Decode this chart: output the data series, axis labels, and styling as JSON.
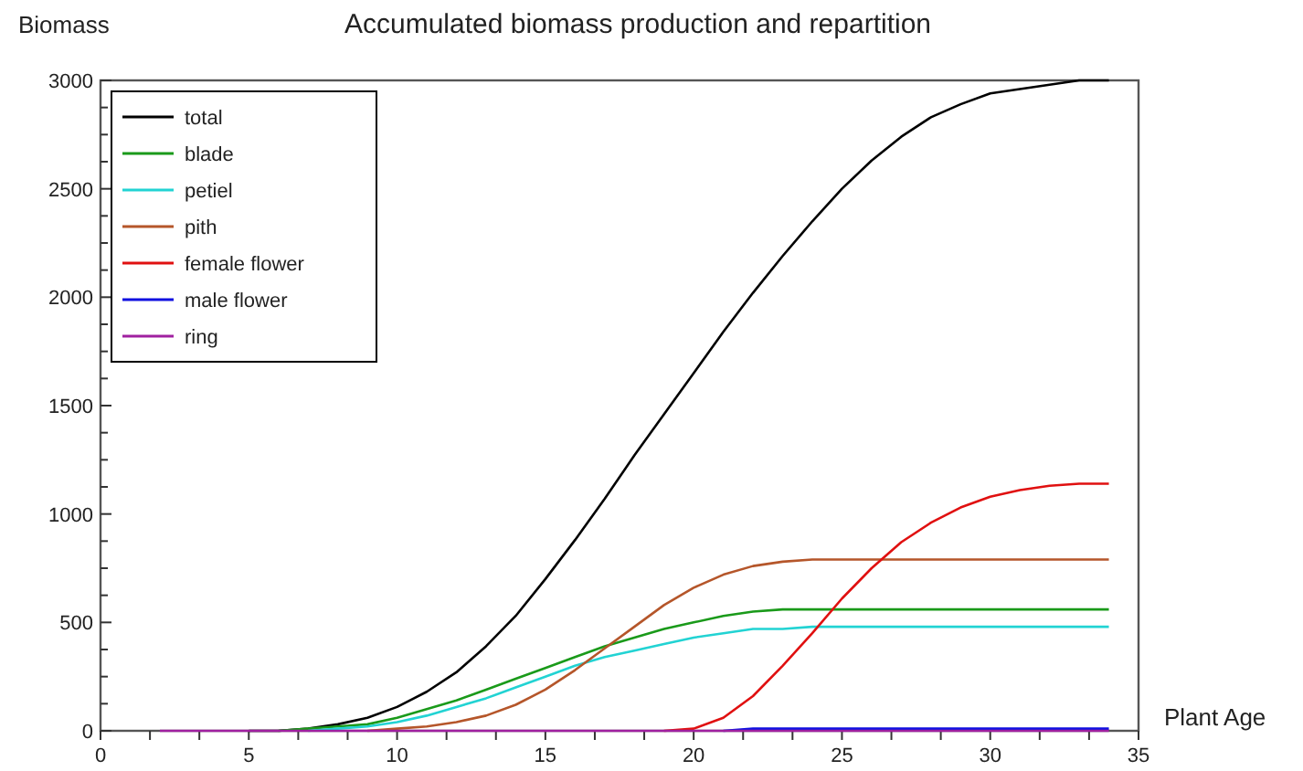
{
  "chart_data": {
    "type": "line",
    "title": "Accumulated biomass production and repartition",
    "xlabel": "Plant Age",
    "ylabel": "Biomass",
    "series": [
      {
        "name": "total",
        "color": "#000000",
        "x": [
          5,
          6,
          7,
          8,
          9,
          10,
          11,
          12,
          13,
          14,
          15,
          16,
          17,
          18,
          19,
          20,
          21,
          22,
          23,
          24,
          25,
          26,
          27,
          28,
          29,
          30,
          31,
          32,
          33,
          34
        ],
        "values": [
          0,
          0,
          10,
          30,
          60,
          110,
          180,
          270,
          390,
          530,
          700,
          880,
          1070,
          1270,
          1460,
          1650,
          1840,
          2020,
          2190,
          2350,
          2500,
          2630,
          2740,
          2830,
          2890,
          2940,
          2960,
          2980,
          3000,
          3000
        ]
      },
      {
        "name": "blade",
        "color": "#1a9a1a",
        "x": [
          6,
          7,
          8,
          9,
          10,
          11,
          12,
          13,
          14,
          15,
          16,
          17,
          18,
          19,
          20,
          21,
          22,
          23,
          24,
          25,
          26,
          27,
          28,
          29,
          30,
          31,
          32,
          33,
          34
        ],
        "values": [
          0,
          10,
          20,
          30,
          60,
          100,
          140,
          190,
          240,
          290,
          340,
          390,
          430,
          470,
          500,
          530,
          550,
          560,
          560,
          560,
          560,
          560,
          560,
          560,
          560,
          560,
          560,
          560,
          560
        ]
      },
      {
        "name": "petiel",
        "color": "#22d3d3",
        "x": [
          7,
          8,
          9,
          10,
          11,
          12,
          13,
          14,
          15,
          16,
          17,
          18,
          19,
          20,
          21,
          22,
          23,
          24,
          25,
          26,
          27,
          28,
          29,
          30,
          31,
          32,
          33,
          34
        ],
        "values": [
          0,
          10,
          20,
          40,
          70,
          110,
          150,
          200,
          250,
          300,
          340,
          370,
          400,
          430,
          450,
          470,
          470,
          480,
          480,
          480,
          480,
          480,
          480,
          480,
          480,
          480,
          480,
          480
        ]
      },
      {
        "name": "pith",
        "color": "#b5562a",
        "x": [
          9,
          10,
          11,
          12,
          13,
          14,
          15,
          16,
          17,
          18,
          19,
          20,
          21,
          22,
          23,
          24,
          25,
          26,
          27,
          28,
          29,
          30,
          31,
          32,
          33,
          34
        ],
        "values": [
          0,
          10,
          20,
          40,
          70,
          120,
          190,
          280,
          380,
          480,
          580,
          660,
          720,
          760,
          780,
          790,
          790,
          790,
          790,
          790,
          790,
          790,
          790,
          790,
          790,
          790
        ]
      },
      {
        "name": "female flower",
        "color": "#e01010",
        "x": [
          19,
          20,
          21,
          22,
          23,
          24,
          25,
          26,
          27,
          28,
          29,
          30,
          31,
          32,
          33,
          34
        ],
        "values": [
          0,
          10,
          60,
          160,
          300,
          450,
          610,
          750,
          870,
          960,
          1030,
          1080,
          1110,
          1130,
          1140,
          1140
        ]
      },
      {
        "name": "male flower",
        "color": "#1010e0",
        "x": [
          21,
          22,
          23,
          24,
          25,
          26,
          27,
          28,
          29,
          30,
          31,
          32,
          33,
          34
        ],
        "values": [
          0,
          10,
          10,
          10,
          10,
          10,
          10,
          10,
          10,
          10,
          10,
          10,
          10,
          10
        ]
      },
      {
        "name": "ring",
        "color": "#a020a0",
        "x": [
          2,
          3,
          4,
          5,
          6,
          7,
          8,
          9,
          10,
          11,
          12,
          13,
          14,
          15,
          16,
          17,
          18,
          19,
          20,
          21,
          22,
          23,
          24,
          25,
          26,
          27,
          28,
          29,
          30,
          31,
          32,
          33,
          34
        ],
        "values": [
          0,
          0,
          0,
          0,
          0,
          0,
          0,
          0,
          0,
          0,
          0,
          0,
          0,
          0,
          0,
          0,
          0,
          0,
          0,
          0,
          0,
          0,
          0,
          0,
          0,
          0,
          0,
          0,
          0,
          0,
          0,
          0,
          0
        ]
      }
    ],
    "xlim": [
      0,
      35
    ],
    "xticks": [
      0,
      {
        "value": 1.667,
        "label": null
      },
      {
        "value": 3.333,
        "label": null
      },
      5,
      {
        "value": 6.667,
        "label": null
      },
      {
        "value": 8.333,
        "label": null
      },
      10,
      {
        "value": 11.667,
        "label": null
      },
      {
        "value": 13.333,
        "label": null
      },
      15,
      {
        "value": 16.667,
        "label": null
      },
      {
        "value": 18.333,
        "label": null
      },
      20,
      {
        "value": 21.667,
        "label": null
      },
      {
        "value": 23.333,
        "label": null
      },
      25,
      {
        "value": 26.667,
        "label": null
      },
      {
        "value": 28.333,
        "label": null
      },
      30,
      {
        "value": 31.667,
        "label": null
      },
      {
        "value": 33.333,
        "label": null
      },
      35
    ],
    "ylim": [
      0,
      3000
    ],
    "yticks": [
      0,
      {
        "value": 125,
        "label": null
      },
      {
        "value": 250,
        "label": null
      },
      {
        "value": 375,
        "label": null
      },
      500,
      {
        "value": 625,
        "label": null
      },
      {
        "value": 750,
        "label": null
      },
      {
        "value": 875,
        "label": null
      },
      1000,
      {
        "value": 1125,
        "label": null
      },
      {
        "value": 1250,
        "label": null
      },
      {
        "value": 1375,
        "label": null
      },
      1500,
      {
        "value": 1625,
        "label": null
      },
      {
        "value": 1750,
        "label": null
      },
      {
        "value": 1875,
        "label": null
      },
      2000,
      {
        "value": 2125,
        "label": null
      },
      {
        "value": 2250,
        "label": null
      },
      {
        "value": 2375,
        "label": null
      },
      2500,
      {
        "value": 2625,
        "label": null
      },
      {
        "value": 2750,
        "label": null
      },
      {
        "value": 2875,
        "label": null
      },
      3000
    ],
    "grid": false,
    "legend": "top left",
    "marker": "none",
    "line_style": "solid"
  }
}
